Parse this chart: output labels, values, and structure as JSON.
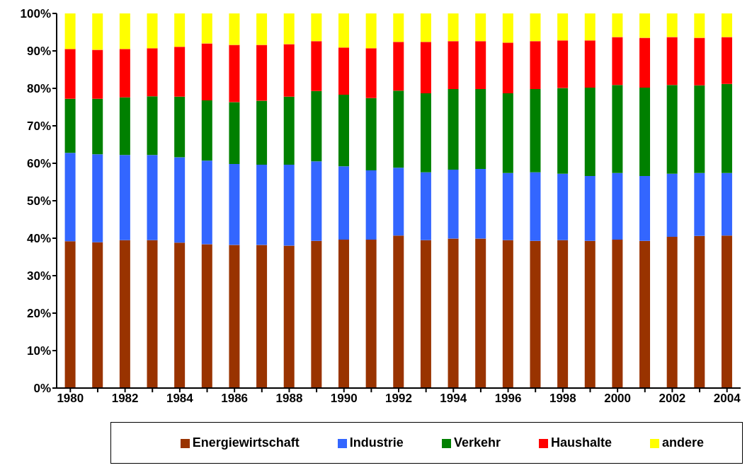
{
  "chart_data": {
    "type": "bar",
    "stacked": true,
    "categories": [
      "1980",
      null,
      "1982",
      null,
      "1984",
      null,
      "1986",
      null,
      "1988",
      null,
      "1990",
      null,
      "1992",
      null,
      "1994",
      null,
      "1996",
      null,
      "1998",
      null,
      "2000",
      null,
      "2002",
      null,
      "2004"
    ],
    "series": [
      {
        "name": "Energiewirtschaft",
        "color": "#993300",
        "values": [
          39.2,
          38.9,
          39.5,
          39.5,
          38.8,
          38.4,
          38.2,
          38.2,
          38.0,
          39.3,
          39.6,
          39.6,
          40.7,
          39.5,
          39.9,
          39.9,
          39.5,
          39.3,
          39.5,
          39.3,
          39.6,
          39.3,
          40.4,
          40.6,
          40.7
        ]
      },
      {
        "name": "Industrie",
        "color": "#3366ff",
        "values": [
          23.6,
          23.5,
          22.7,
          22.7,
          22.8,
          22.3,
          21.6,
          21.4,
          21.6,
          21.2,
          19.6,
          18.5,
          18.1,
          18.1,
          18.4,
          18.6,
          17.9,
          18.3,
          17.7,
          17.3,
          17.8,
          17.3,
          16.8,
          16.8,
          16.7
        ]
      },
      {
        "name": "Verkehr",
        "color": "#008000",
        "values": [
          14.4,
          14.8,
          15.4,
          15.7,
          16.2,
          16.1,
          16.5,
          17.1,
          18.2,
          18.8,
          19.1,
          19.3,
          20.6,
          21.1,
          21.5,
          21.3,
          21.3,
          22.2,
          22.9,
          23.6,
          23.5,
          23.6,
          23.7,
          23.4,
          23.8
        ]
      },
      {
        "name": "Haushalte",
        "color": "#ff0000",
        "values": [
          13.3,
          13.1,
          12.9,
          12.8,
          13.3,
          15.2,
          15.3,
          14.9,
          14.0,
          13.3,
          12.6,
          13.3,
          13.0,
          13.7,
          12.8,
          12.8,
          13.5,
          12.8,
          12.7,
          12.6,
          12.8,
          13.3,
          12.8,
          12.7,
          12.5
        ]
      },
      {
        "name": "andere",
        "color": "#ffff00",
        "values": [
          9.5,
          9.7,
          9.5,
          9.3,
          8.9,
          8.0,
          8.4,
          8.4,
          8.2,
          7.4,
          9.1,
          9.3,
          7.6,
          7.6,
          7.4,
          7.4,
          7.8,
          7.4,
          7.2,
          7.2,
          6.3,
          6.5,
          6.3,
          6.5,
          6.3
        ]
      }
    ],
    "ylim": [
      0,
      100
    ],
    "yticks": [
      {
        "value": 0,
        "label": "0%"
      },
      {
        "value": 10,
        "label": "10%"
      },
      {
        "value": 20,
        "label": "20%"
      },
      {
        "value": 30,
        "label": "30%"
      },
      {
        "value": 40,
        "label": "40%"
      },
      {
        "value": 50,
        "label": "50%"
      },
      {
        "value": 60,
        "label": "60%"
      },
      {
        "value": 70,
        "label": "70%"
      },
      {
        "value": 80,
        "label": "80%"
      },
      {
        "value": 90,
        "label": "90%"
      },
      {
        "value": 100,
        "label": "100%"
      }
    ],
    "grid": false,
    "legend": "bottom"
  }
}
